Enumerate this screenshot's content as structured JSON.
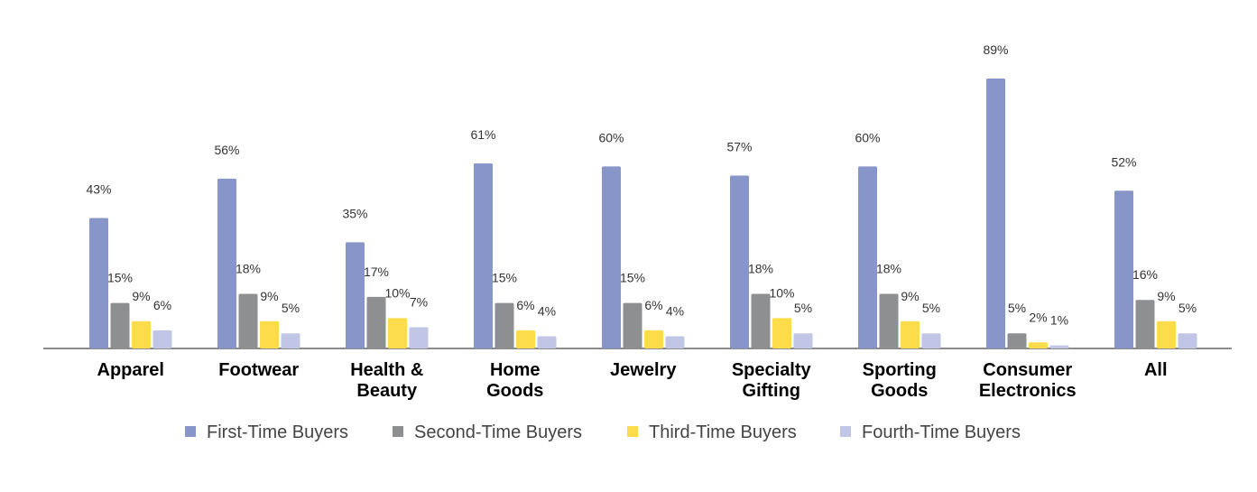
{
  "chart_data": {
    "type": "bar",
    "title": "",
    "xlabel": "",
    "ylabel": "",
    "ylim": [
      0,
      100
    ],
    "grid": false,
    "legend_position": "bottom",
    "value_suffix": "%",
    "categories": [
      [
        "Apparel"
      ],
      [
        "Footwear"
      ],
      [
        "Health &",
        "Beauty"
      ],
      [
        "Home",
        "Goods"
      ],
      [
        "Jewelry"
      ],
      [
        "Specialty",
        "Gifting"
      ],
      [
        "Sporting",
        "Goods"
      ],
      [
        "Consumer",
        "Electronics"
      ],
      [
        "All"
      ]
    ],
    "series": [
      {
        "name": "First-Time Buyers",
        "color": "#8795c9",
        "values": [
          43,
          56,
          35,
          61,
          60,
          57,
          60,
          89,
          52
        ]
      },
      {
        "name": "Second-Time Buyers",
        "color": "#8e8f91",
        "values": [
          15,
          18,
          17,
          15,
          15,
          18,
          18,
          5,
          16
        ]
      },
      {
        "name": "Third-Time Buyers",
        "color": "#fcdc4a",
        "values": [
          9,
          9,
          10,
          6,
          6,
          10,
          9,
          2,
          9
        ]
      },
      {
        "name": "Fourth-Time Buyers",
        "color": "#c2c6e6",
        "values": [
          6,
          5,
          7,
          4,
          4,
          5,
          5,
          1,
          5
        ]
      }
    ]
  }
}
